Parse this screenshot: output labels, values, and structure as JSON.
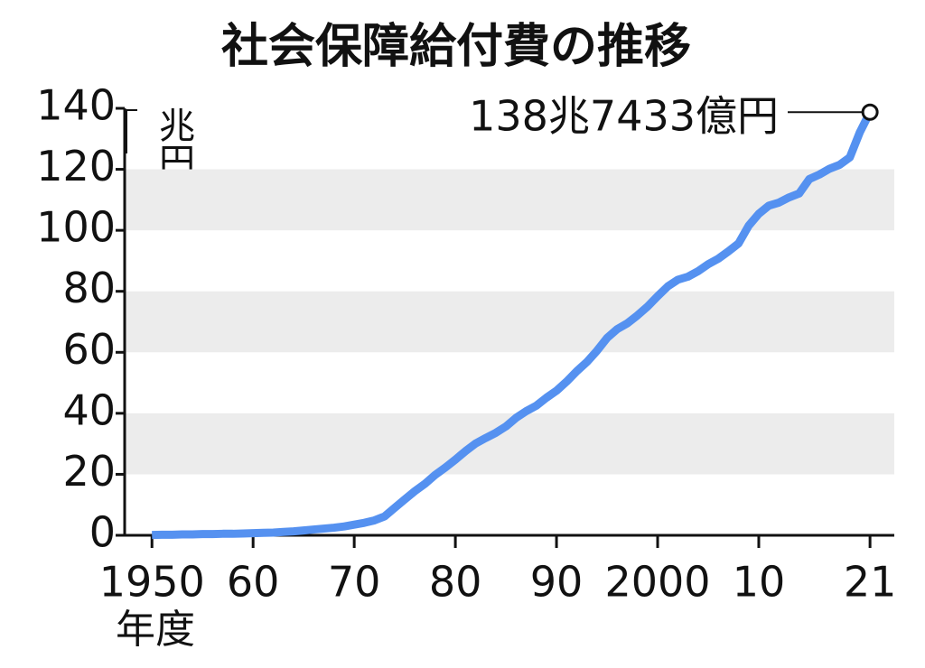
{
  "chart_data": {
    "type": "line",
    "title": "社会保障給付費の推移",
    "unit": "兆円",
    "x_label": "年度",
    "x": [
      1950,
      1951,
      1952,
      1953,
      1954,
      1955,
      1956,
      1957,
      1958,
      1959,
      1960,
      1961,
      1962,
      1963,
      1964,
      1965,
      1966,
      1967,
      1968,
      1969,
      1970,
      1971,
      1972,
      1973,
      1974,
      1975,
      1976,
      1977,
      1978,
      1979,
      1980,
      1981,
      1982,
      1983,
      1984,
      1985,
      1986,
      1987,
      1988,
      1989,
      1990,
      1991,
      1992,
      1993,
      1994,
      1995,
      1996,
      1997,
      1998,
      1999,
      2000,
      2001,
      2002,
      2003,
      2004,
      2005,
      2006,
      2007,
      2008,
      2009,
      2010,
      2011,
      2012,
      2013,
      2014,
      2015,
      2016,
      2017,
      2018,
      2019,
      2020,
      2021
    ],
    "series": [
      {
        "color": "#5591f0",
        "values": [
          0.1,
          0.2,
          0.2,
          0.3,
          0.3,
          0.4,
          0.4,
          0.5,
          0.5,
          0.6,
          0.7,
          0.8,
          0.9,
          1.1,
          1.3,
          1.6,
          1.9,
          2.2,
          2.5,
          2.9,
          3.5,
          4.1,
          4.9,
          6.2,
          9.0,
          11.8,
          14.5,
          16.9,
          19.8,
          22.2,
          24.8,
          27.6,
          30.1,
          31.9,
          33.6,
          35.7,
          38.5,
          40.7,
          42.5,
          45.1,
          47.4,
          50.4,
          53.8,
          56.8,
          60.5,
          64.7,
          67.6,
          69.5,
          72.1,
          75.0,
          78.4,
          81.6,
          83.8,
          84.8,
          86.6,
          88.9,
          90.7,
          93.1,
          95.7,
          101.5,
          105.4,
          108.1,
          109.1,
          110.8,
          112.1,
          116.8,
          118.3,
          120.2,
          121.5,
          123.9,
          132.2,
          138.7433
        ]
      }
    ],
    "annotation": "138兆7433億円",
    "xlim": [
      1947.3,
      2023.4
    ],
    "xticks": [
      {
        "value": 1950,
        "label": "1950"
      },
      {
        "value": 1960,
        "label": "60"
      },
      {
        "value": 1970,
        "label": "70"
      },
      {
        "value": 1980,
        "label": "80"
      },
      {
        "value": 1990,
        "label": "90"
      },
      {
        "value": 2000,
        "label": "2000"
      },
      {
        "value": 2010,
        "label": "10"
      },
      {
        "value": 2021,
        "label": "21"
      }
    ],
    "ylim": [
      0,
      140
    ],
    "yticks": [
      0,
      20,
      40,
      60,
      80,
      100,
      120,
      140
    ],
    "grid_bands": true,
    "band_color": "#ececec"
  }
}
